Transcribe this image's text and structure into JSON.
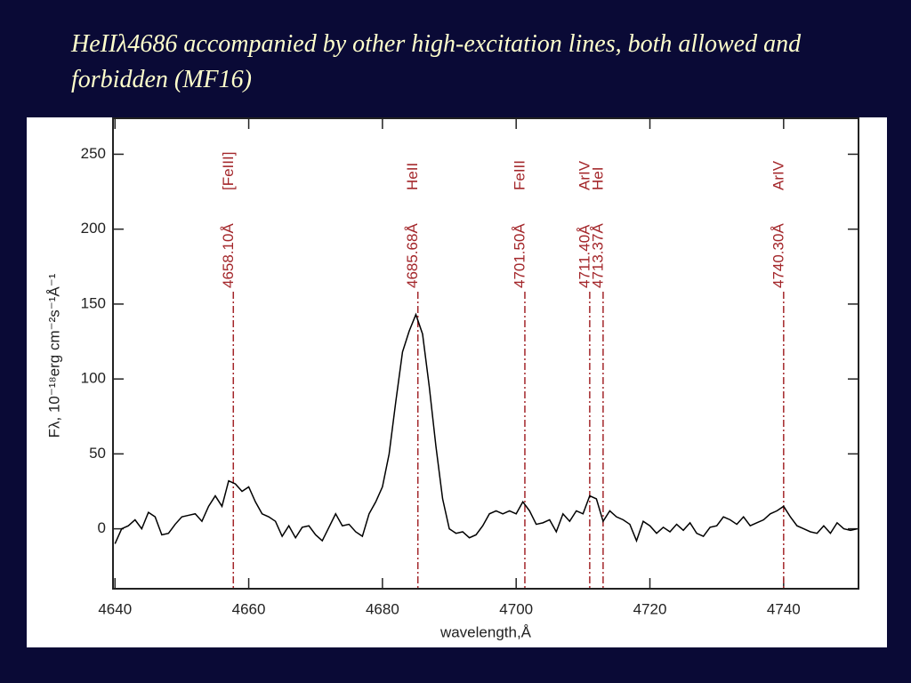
{
  "chart_data": {
    "type": "line",
    "title": "HeIIλ4686 accompanied by other high-excitation lines, both allowed and forbidden (MF16)",
    "xlabel": "wavelength,Å",
    "ylabel": "Fλ, 10⁻¹⁸erg cm⁻²s⁻¹Å⁻¹",
    "xlim": [
      4639.7,
      4751.2
    ],
    "ylim": [
      -40,
      274
    ],
    "xticks": [
      4640,
      4660,
      4680,
      4700,
      4720,
      4740
    ],
    "yticks": [
      0,
      50,
      100,
      150,
      200,
      250
    ],
    "x": [
      4640,
      4641,
      4642,
      4643,
      4644,
      4645,
      4646,
      4647,
      4648,
      4649,
      4650,
      4651,
      4652,
      4653,
      4654,
      4655,
      4656,
      4657,
      4658,
      4659,
      4660,
      4661,
      4662,
      4663,
      4664,
      4665,
      4666,
      4667,
      4668,
      4669,
      4670,
      4671,
      4672,
      4673,
      4674,
      4675,
      4676,
      4677,
      4678,
      4679,
      4680,
      4681,
      4682,
      4683,
      4684,
      4685,
      4686,
      4687,
      4688,
      4689,
      4690,
      4691,
      4692,
      4693,
      4694,
      4695,
      4696,
      4697,
      4698,
      4699,
      4700,
      4701,
      4702,
      4703,
      4704,
      4705,
      4706,
      4707,
      4708,
      4709,
      4710,
      4711,
      4712,
      4713,
      4714,
      4715,
      4716,
      4717,
      4718,
      4719,
      4720,
      4721,
      4722,
      4723,
      4724,
      4725,
      4726,
      4727,
      4728,
      4729,
      4730,
      4731,
      4732,
      4733,
      4734,
      4735,
      4736,
      4737,
      4738,
      4739,
      4740,
      4741,
      4742,
      4743,
      4744,
      4745,
      4746,
      4747,
      4748,
      4749,
      4750,
      4751
    ],
    "series": [
      {
        "color": "#000000",
        "values": [
          -10,
          0,
          2,
          6,
          0,
          11,
          8,
          -4,
          -3,
          3,
          8,
          9,
          10,
          5,
          15,
          22,
          15,
          32,
          30,
          25,
          28,
          18,
          10,
          8,
          5,
          -5,
          2,
          -6,
          1,
          2,
          -4,
          -8,
          1,
          10,
          2,
          3,
          -2,
          -5,
          10,
          18,
          28,
          50,
          85,
          118,
          132,
          143,
          130,
          95,
          55,
          20,
          0,
          -3,
          -2,
          -6,
          -4,
          2,
          10,
          12,
          10,
          12,
          10,
          18,
          12,
          3,
          4,
          6,
          -2,
          10,
          5,
          12,
          10,
          22,
          20,
          5,
          12,
          8,
          6,
          3,
          -8,
          5,
          2,
          -3,
          1,
          -2,
          3,
          -1,
          4,
          -3,
          -5,
          1,
          2,
          8,
          6,
          3,
          8,
          2,
          4,
          6,
          10,
          12,
          15,
          8,
          2,
          0,
          -2,
          -3,
          2,
          -3,
          4,
          0,
          -1,
          0
        ]
      }
    ],
    "annotations": [
      {
        "x": 4657.7,
        "label": "4658.10Å",
        "ion": "[FeIII]"
      },
      {
        "x": 4685.3,
        "label": "4685.68Å",
        "ion": "HeII"
      },
      {
        "x": 4701.3,
        "label": "4701.50Å",
        "ion": "FeIII"
      },
      {
        "x": 4711.0,
        "label": "4711.40Å",
        "ion": "ArIV"
      },
      {
        "x": 4713.0,
        "label": "4713.37Å",
        "ion": "HeI"
      },
      {
        "x": 4740.0,
        "label": "4740.30Å",
        "ion": "ArIV"
      }
    ],
    "annotation_color": "#a3262a"
  }
}
